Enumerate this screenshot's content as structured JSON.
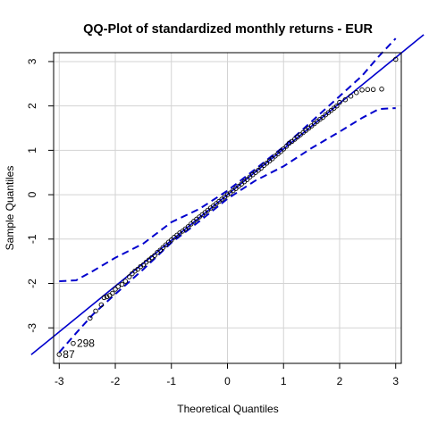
{
  "chart_data": {
    "type": "scatter",
    "title": "QQ-Plot of standardized monthly returns - EUR",
    "xlabel": "Theoretical Quantiles",
    "ylabel": "Sample Quantiles",
    "xlim": [
      -3.1,
      3.1
    ],
    "ylim": [
      -3.8,
      3.2
    ],
    "x_ticks": [
      -3,
      -2,
      -1,
      0,
      1,
      2,
      3
    ],
    "y_ticks": [
      -3,
      -2,
      -1,
      0,
      1,
      2,
      3
    ],
    "grid": true,
    "reference_line": {
      "intercept": 0.0,
      "slope": 1.03
    },
    "envelope_upper": [
      {
        "x": -3.0,
        "y": -1.95
      },
      {
        "x": -2.7,
        "y": -1.93
      },
      {
        "x": -2.4,
        "y": -1.72
      },
      {
        "x": -2.0,
        "y": -1.42
      },
      {
        "x": -1.5,
        "y": -1.1
      },
      {
        "x": -1.0,
        "y": -0.62
      },
      {
        "x": -0.5,
        "y": -0.32
      },
      {
        "x": 0.0,
        "y": 0.09
      },
      {
        "x": 0.5,
        "y": 0.58
      },
      {
        "x": 1.0,
        "y": 1.08
      },
      {
        "x": 1.5,
        "y": 1.65
      },
      {
        "x": 2.0,
        "y": 2.22
      },
      {
        "x": 2.4,
        "y": 2.68
      },
      {
        "x": 2.7,
        "y": 3.12
      },
      {
        "x": 3.0,
        "y": 3.52
      }
    ],
    "envelope_lower": [
      {
        "x": -3.0,
        "y": -3.55
      },
      {
        "x": -2.7,
        "y": -3.12
      },
      {
        "x": -2.4,
        "y": -2.7
      },
      {
        "x": -2.0,
        "y": -2.24
      },
      {
        "x": -1.5,
        "y": -1.68
      },
      {
        "x": -1.0,
        "y": -1.08
      },
      {
        "x": -0.5,
        "y": -0.6
      },
      {
        "x": 0.0,
        "y": -0.09
      },
      {
        "x": 0.5,
        "y": 0.32
      },
      {
        "x": 1.0,
        "y": 0.64
      },
      {
        "x": 1.5,
        "y": 1.05
      },
      {
        "x": 2.0,
        "y": 1.42
      },
      {
        "x": 2.4,
        "y": 1.73
      },
      {
        "x": 2.7,
        "y": 1.93
      },
      {
        "x": 3.0,
        "y": 1.95
      }
    ],
    "points_x": [
      -3.0,
      -2.75,
      -2.45,
      -2.35,
      -2.25,
      -2.2,
      -2.15,
      -2.1,
      -2.05,
      -2.0,
      -1.95,
      -1.88,
      -1.82,
      -1.75,
      -1.7,
      -1.65,
      -1.6,
      -1.55,
      -1.5,
      -1.45,
      -1.4,
      -1.35,
      -1.3,
      -1.25,
      -1.2,
      -1.15,
      -1.1,
      -1.05,
      -1.0,
      -0.95,
      -0.9,
      -0.85,
      -0.8,
      -0.75,
      -0.7,
      -0.65,
      -0.6,
      -0.55,
      -0.5,
      -0.45,
      -0.4,
      -0.35,
      -0.3,
      -0.25,
      -0.2,
      -0.15,
      -0.1,
      -0.05,
      0.0,
      0.05,
      0.1,
      0.15,
      0.2,
      0.25,
      0.3,
      0.35,
      0.4,
      0.45,
      0.5,
      0.55,
      0.6,
      0.65,
      0.7,
      0.75,
      0.8,
      0.85,
      0.9,
      0.95,
      1.0,
      1.05,
      1.1,
      1.15,
      1.2,
      1.25,
      1.3,
      1.35,
      1.4,
      1.45,
      1.5,
      1.55,
      1.6,
      1.65,
      1.7,
      1.75,
      1.8,
      1.85,
      1.9,
      1.95,
      2.0,
      2.1,
      2.2,
      2.3,
      2.4,
      2.5,
      2.6,
      2.75,
      3.0
    ],
    "points_y": [
      -3.6,
      -3.35,
      -2.78,
      -2.62,
      -2.48,
      -2.32,
      -2.3,
      -2.27,
      -2.22,
      -2.13,
      -2.07,
      -2.02,
      -1.95,
      -1.85,
      -1.78,
      -1.72,
      -1.68,
      -1.62,
      -1.58,
      -1.52,
      -1.47,
      -1.42,
      -1.37,
      -1.3,
      -1.25,
      -1.19,
      -1.13,
      -1.07,
      -1.02,
      -0.96,
      -0.91,
      -0.86,
      -0.82,
      -0.77,
      -0.72,
      -0.66,
      -0.6,
      -0.55,
      -0.5,
      -0.45,
      -0.4,
      -0.35,
      -0.3,
      -0.25,
      -0.2,
      -0.15,
      -0.1,
      -0.05,
      0.0,
      0.04,
      0.09,
      0.14,
      0.19,
      0.24,
      0.29,
      0.34,
      0.4,
      0.45,
      0.5,
      0.55,
      0.6,
      0.66,
      0.71,
      0.76,
      0.81,
      0.87,
      0.92,
      0.97,
      1.03,
      1.09,
      1.16,
      1.2,
      1.25,
      1.3,
      1.35,
      1.4,
      1.45,
      1.5,
      1.55,
      1.6,
      1.65,
      1.7,
      1.74,
      1.8,
      1.85,
      1.9,
      1.95,
      2.0,
      2.08,
      2.14,
      2.22,
      2.3,
      2.36,
      2.37,
      2.37,
      2.38,
      3.05
    ],
    "point_labels": [
      {
        "label": "87",
        "x": -3.0,
        "y": -3.6
      },
      {
        "label": "298",
        "x": -2.75,
        "y": -3.35
      }
    ],
    "colors": {
      "reference_line": "#0000CD",
      "envelope": "#0000CD",
      "points": "#000000",
      "grid": "#D3D3D3"
    }
  }
}
